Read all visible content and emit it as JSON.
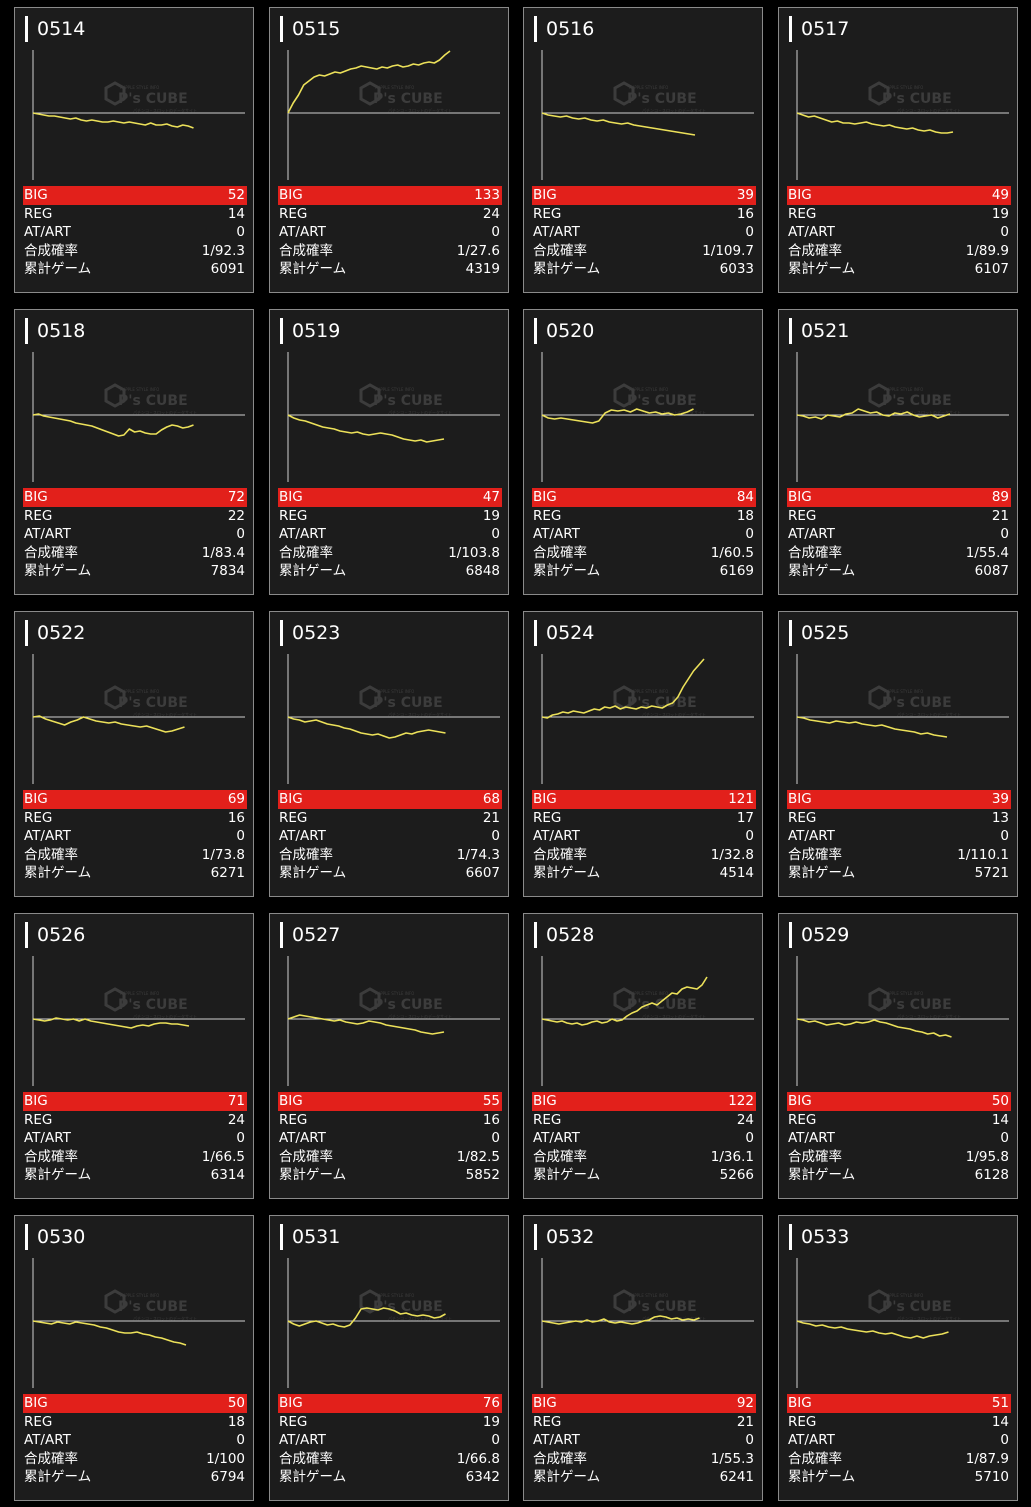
{
  "watermark": {
    "line1": "PUPPLE STYLE INFO",
    "brand": "P's CUBE",
    "line3": "パチンコ・スロットのデータサイト",
    "icon": "cube-icon"
  },
  "colors": {
    "line": "#ece15a",
    "big_bar": "#e2201b",
    "card_bg": "#1c1c1c",
    "axis": "#cfcfcf"
  },
  "labels": {
    "big": "BIG",
    "reg": "REG",
    "atart": "AT/ART",
    "prob": "合成確率",
    "games": "累計ゲーム"
  },
  "machines": [
    {
      "number": "0514",
      "big": "52",
      "reg": "14",
      "atart": "0",
      "prob": "1/92.3",
      "games": "6091",
      "graph": [
        0,
        -1,
        -2,
        -3,
        -3,
        -4,
        -5,
        -6,
        -5,
        -7,
        -8,
        -7,
        -8,
        -9,
        -9,
        -8,
        -9,
        -10,
        -9,
        -10,
        -11,
        -12,
        -10,
        -12,
        -12,
        -11,
        -13,
        -14,
        -12,
        -13,
        -15
      ]
    },
    {
      "number": "0515",
      "big": "133",
      "reg": "24",
      "atart": "0",
      "prob": "1/27.6",
      "games": "4319",
      "graph": [
        0,
        10,
        18,
        28,
        32,
        36,
        38,
        37,
        39,
        41,
        40,
        42,
        44,
        45,
        47,
        46,
        45,
        44,
        46,
        45,
        47,
        48,
        46,
        47,
        49,
        48,
        50,
        51,
        50,
        53,
        58,
        62
      ]
    },
    {
      "number": "0516",
      "big": "39",
      "reg": "16",
      "atart": "0",
      "prob": "1/109.7",
      "games": "6033",
      "graph": [
        0,
        -2,
        -3,
        -4,
        -3,
        -5,
        -6,
        -5,
        -7,
        -8,
        -7,
        -9,
        -10,
        -11,
        -10,
        -12,
        -13,
        -14,
        -15,
        -16,
        -17,
        -18,
        -19,
        -20,
        -21,
        -22
      ]
    },
    {
      "number": "0517",
      "big": "49",
      "reg": "19",
      "atart": "0",
      "prob": "1/89.9",
      "games": "6107",
      "graph": [
        0,
        -2,
        -4,
        -3,
        -5,
        -7,
        -9,
        -8,
        -10,
        -10,
        -11,
        -10,
        -9,
        -11,
        -12,
        -13,
        -12,
        -14,
        -15,
        -16,
        -15,
        -17,
        -18,
        -17,
        -19,
        -20,
        -20,
        -19
      ]
    },
    {
      "number": "0518",
      "big": "72",
      "reg": "22",
      "atart": "0",
      "prob": "1/83.4",
      "games": "7834",
      "graph": [
        0,
        1,
        -1,
        -2,
        -3,
        -4,
        -5,
        -6,
        -8,
        -9,
        -10,
        -11,
        -13,
        -15,
        -17,
        -19,
        -21,
        -20,
        -14,
        -17,
        -16,
        -18,
        -19,
        -19,
        -15,
        -12,
        -10,
        -11,
        -13,
        -12,
        -10
      ]
    },
    {
      "number": "0519",
      "big": "47",
      "reg": "19",
      "atart": "0",
      "prob": "1/103.8",
      "games": "6848",
      "graph": [
        0,
        -3,
        -5,
        -6,
        -8,
        -10,
        -12,
        -13,
        -14,
        -16,
        -17,
        -18,
        -17,
        -19,
        -20,
        -19,
        -18,
        -19,
        -20,
        -22,
        -24,
        -25,
        -26,
        -25,
        -27,
        -26,
        -25,
        -24
      ]
    },
    {
      "number": "0520",
      "big": "84",
      "reg": "18",
      "atart": "0",
      "prob": "1/60.5",
      "games": "6169",
      "graph": [
        0,
        -3,
        -4,
        -3,
        -4,
        -5,
        -6,
        -7,
        -8,
        -6,
        2,
        5,
        4,
        5,
        3,
        6,
        4,
        2,
        3,
        1,
        2,
        0,
        1,
        3,
        6
      ]
    },
    {
      "number": "0521",
      "big": "89",
      "reg": "21",
      "atart": "0",
      "prob": "1/55.4",
      "games": "6087",
      "graph": [
        0,
        -1,
        -3,
        -2,
        -4,
        0,
        -1,
        -2,
        1,
        2,
        6,
        4,
        2,
        3,
        0,
        -1,
        2,
        1,
        3,
        0,
        -2,
        -1,
        0,
        -3,
        -1,
        1
      ]
    },
    {
      "number": "0522",
      "big": "69",
      "reg": "16",
      "atart": "0",
      "prob": "1/73.8",
      "games": "6271",
      "graph": [
        0,
        1,
        -2,
        -4,
        -6,
        -8,
        -5,
        -3,
        0,
        -2,
        -4,
        -5,
        -6,
        -5,
        -7,
        -8,
        -9,
        -10,
        -9,
        -11,
        -13,
        -15,
        -14,
        -12,
        -10
      ]
    },
    {
      "number": "0523",
      "big": "68",
      "reg": "21",
      "atart": "0",
      "prob": "1/74.3",
      "games": "6607",
      "graph": [
        0,
        -2,
        -3,
        -5,
        -4,
        -3,
        -5,
        -7,
        -8,
        -9,
        -11,
        -12,
        -14,
        -16,
        -17,
        -18,
        -17,
        -19,
        -21,
        -20,
        -18,
        -16,
        -17,
        -15,
        -14,
        -13,
        -14,
        -15,
        -16
      ]
    },
    {
      "number": "0524",
      "big": "121",
      "reg": "17",
      "atart": "0",
      "prob": "1/32.8",
      "games": "4514",
      "graph": [
        0,
        -1,
        2,
        3,
        5,
        4,
        6,
        5,
        4,
        6,
        8,
        7,
        10,
        9,
        11,
        8,
        10,
        9,
        8,
        10,
        9,
        11,
        10,
        9,
        12,
        14,
        20,
        30,
        38,
        46,
        52,
        58
      ]
    },
    {
      "number": "0525",
      "big": "39",
      "reg": "13",
      "atart": "0",
      "prob": "1/110.1",
      "games": "5721",
      "graph": [
        0,
        -1,
        -3,
        -4,
        -5,
        -6,
        -4,
        -5,
        -6,
        -5,
        -7,
        -8,
        -9,
        -8,
        -10,
        -12,
        -13,
        -14,
        -15,
        -17,
        -16,
        -18,
        -19,
        -20
      ]
    },
    {
      "number": "0526",
      "big": "71",
      "reg": "24",
      "atart": "0",
      "prob": "1/66.5",
      "games": "6314",
      "graph": [
        0,
        -1,
        -2,
        -1,
        1,
        0,
        -1,
        0,
        -2,
        0,
        -2,
        -3,
        -4,
        -5,
        -6,
        -7,
        -8,
        -9,
        -7,
        -6,
        -7,
        -5,
        -4,
        -4,
        -5,
        -5,
        -6,
        -7
      ]
    },
    {
      "number": "0527",
      "big": "55",
      "reg": "16",
      "atart": "0",
      "prob": "1/82.5",
      "games": "5852",
      "graph": [
        0,
        2,
        4,
        3,
        2,
        1,
        0,
        -1,
        -2,
        -1,
        -3,
        -4,
        -5,
        -4,
        -2,
        -3,
        -4,
        -6,
        -7,
        -8,
        -9,
        -10,
        -11,
        -13,
        -14,
        -15,
        -14,
        -13
      ]
    },
    {
      "number": "0528",
      "big": "122",
      "reg": "24",
      "atart": "0",
      "prob": "1/36.1",
      "games": "5266",
      "graph": [
        0,
        -1,
        -2,
        -3,
        -2,
        -4,
        -5,
        -4,
        -6,
        -5,
        -3,
        -2,
        -4,
        -3,
        0,
        -2,
        -1,
        3,
        6,
        8,
        12,
        14,
        16,
        14,
        18,
        22,
        26,
        25,
        30,
        32,
        31,
        30,
        34,
        42
      ]
    },
    {
      "number": "0529",
      "big": "50",
      "reg": "14",
      "atart": "0",
      "prob": "1/95.8",
      "games": "6128",
      "graph": [
        0,
        -1,
        -3,
        -2,
        -4,
        -6,
        -5,
        -4,
        -6,
        -5,
        -3,
        -4,
        -3,
        -1,
        -3,
        -4,
        -6,
        -8,
        -9,
        -10,
        -12,
        -13,
        -15,
        -14,
        -17,
        -16,
        -18
      ]
    },
    {
      "number": "0530",
      "big": "50",
      "reg": "18",
      "atart": "0",
      "prob": "1/100",
      "games": "6794",
      "graph": [
        0,
        -1,
        -2,
        -3,
        -1,
        -2,
        -3,
        -1,
        -2,
        -3,
        -4,
        -6,
        -7,
        -9,
        -11,
        -12,
        -12,
        -11,
        -13,
        -14,
        -16,
        -17,
        -19,
        -21,
        -22,
        -24
      ]
    },
    {
      "number": "0531",
      "big": "76",
      "reg": "19",
      "atart": "0",
      "prob": "1/66.8",
      "games": "6342",
      "graph": [
        0,
        -3,
        -5,
        -3,
        -1,
        0,
        -2,
        -4,
        -3,
        -5,
        -6,
        -4,
        3,
        12,
        13,
        12,
        11,
        13,
        12,
        10,
        7,
        8,
        6,
        5,
        6,
        5,
        3,
        4,
        7
      ]
    },
    {
      "number": "0532",
      "big": "92",
      "reg": "21",
      "atart": "0",
      "prob": "1/55.3",
      "games": "6241",
      "graph": [
        0,
        -1,
        -2,
        -3,
        -2,
        -1,
        0,
        -1,
        1,
        -1,
        0,
        2,
        -1,
        -2,
        -1,
        -2,
        -3,
        -2,
        0,
        1,
        4,
        5,
        4,
        2,
        3,
        1,
        2,
        1,
        3
      ]
    },
    {
      "number": "0533",
      "big": "51",
      "reg": "14",
      "atart": "0",
      "prob": "1/87.9",
      "games": "5710",
      "graph": [
        0,
        -2,
        -3,
        -5,
        -4,
        -6,
        -7,
        -6,
        -8,
        -9,
        -10,
        -11,
        -10,
        -12,
        -13,
        -12,
        -14,
        -16,
        -17,
        -15,
        -17,
        -15,
        -14,
        -13,
        -11
      ]
    }
  ]
}
